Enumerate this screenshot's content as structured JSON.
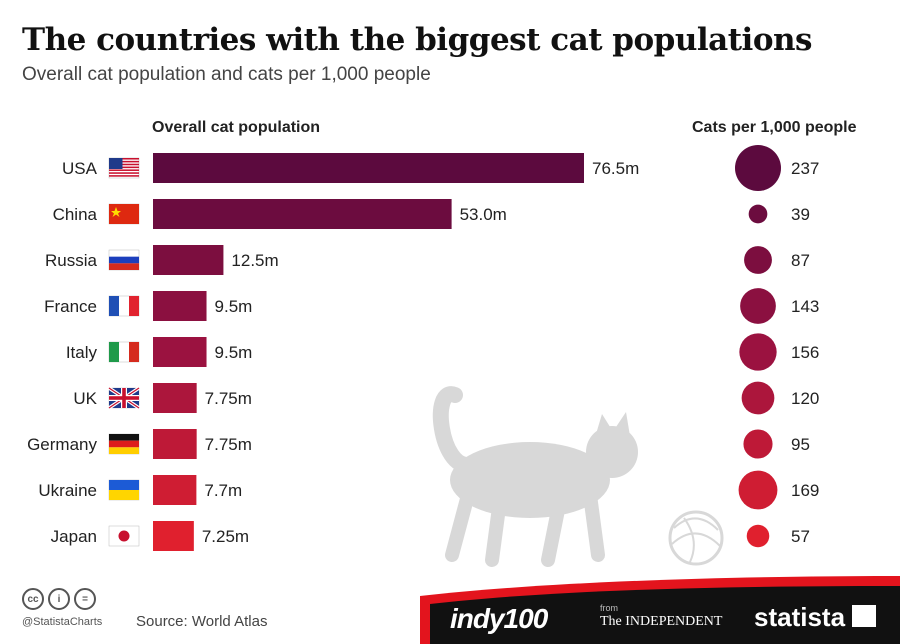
{
  "title": "The countries with the biggest cat populations",
  "subtitle": "Overall cat population and cats per 1,000 people",
  "footer": {
    "handle": "@StatistaCharts",
    "source": "Source: World Atlas",
    "brand_indy": "indy100",
    "brand_from": "from",
    "brand_independent": "The INDEPENDENT",
    "brand_statista": "statista"
  },
  "colors": {
    "dark": "#5c0a3e",
    "mid": "#9b1240",
    "red": "#e0202e",
    "footer_band": "#111111",
    "footer_red": "#e3141d",
    "cat_silhouette": "#d8d8d8"
  },
  "chart_data": [
    {
      "type": "bar",
      "orientation": "horizontal",
      "title": "Overall cat population",
      "categories": [
        "USA",
        "China",
        "Russia",
        "France",
        "Italy",
        "UK",
        "Germany",
        "Ukraine",
        "Japan"
      ],
      "values": [
        76.5,
        53.0,
        12.5,
        9.5,
        9.5,
        7.75,
        7.75,
        7.7,
        7.25
      ],
      "value_labels": [
        "76.5m",
        "53.0m",
        "12.5m",
        "9.5m",
        "9.5m",
        "7.75m",
        "7.75m",
        "7.7m",
        "7.25m"
      ],
      "unit": "million cats",
      "flags": [
        "us-flag-icon",
        "china-flag-icon",
        "russia-flag-icon",
        "france-flag-icon",
        "italy-flag-icon",
        "uk-flag-icon",
        "germany-flag-icon",
        "ukraine-flag-icon",
        "japan-flag-icon"
      ]
    },
    {
      "type": "scatter",
      "marker": "bubble",
      "title": "Cats per 1,000 people",
      "categories": [
        "USA",
        "China",
        "Russia",
        "France",
        "Italy",
        "UK",
        "Germany",
        "Ukraine",
        "Japan"
      ],
      "values": [
        237,
        39,
        87,
        143,
        156,
        120,
        95,
        169,
        57
      ],
      "value_labels": [
        "237",
        "39",
        "87",
        "143",
        "156",
        "120",
        "95",
        "169",
        "57"
      ]
    }
  ]
}
